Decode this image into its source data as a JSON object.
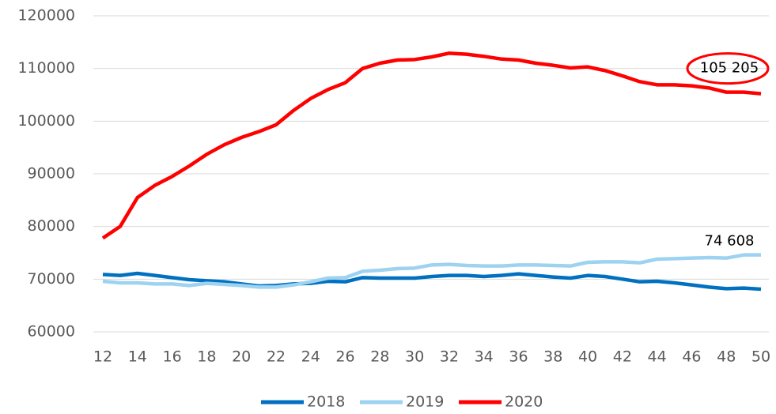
{
  "chart_data": {
    "type": "line",
    "x": [
      12,
      13,
      14,
      15,
      16,
      17,
      18,
      19,
      20,
      21,
      22,
      23,
      24,
      25,
      26,
      27,
      28,
      29,
      30,
      31,
      32,
      33,
      34,
      35,
      36,
      37,
      38,
      39,
      40,
      41,
      42,
      43,
      44,
      45,
      46,
      47,
      48,
      49,
      50
    ],
    "series": [
      {
        "name": "2018",
        "color": "#0070c0",
        "values": [
          70900,
          70700,
          71100,
          70700,
          70300,
          69900,
          69700,
          69500,
          69100,
          68700,
          68800,
          69100,
          69200,
          69600,
          69500,
          70300,
          70200,
          70200,
          70200,
          70500,
          70700,
          70700,
          70500,
          70700,
          71000,
          70700,
          70400,
          70200,
          70700,
          70500,
          70000,
          69500,
          69600,
          69300,
          68900,
          68500,
          68200,
          68300,
          68100
        ]
      },
      {
        "name": "2019",
        "color": "#9dd3f0",
        "values": [
          69600,
          69300,
          69300,
          69100,
          69100,
          68800,
          69200,
          69000,
          68800,
          68500,
          68500,
          68900,
          69500,
          70200,
          70300,
          71500,
          71700,
          72000,
          72100,
          72700,
          72800,
          72600,
          72500,
          72500,
          72700,
          72700,
          72600,
          72500,
          73200,
          73300,
          73300,
          73100,
          73800,
          73900,
          74000,
          74100,
          74000,
          74600,
          74608
        ],
        "value_labels": [
          null,
          null,
          null,
          null,
          null,
          null,
          null,
          null,
          null,
          null,
          null,
          null,
          null,
          null,
          null,
          null,
          null,
          null,
          null,
          null,
          null,
          null,
          null,
          null,
          null,
          null,
          null,
          null,
          null,
          null,
          null,
          null,
          null,
          null,
          null,
          null,
          null,
          null,
          "74 608"
        ]
      },
      {
        "name": "2020",
        "color": "#ff0000",
        "values": [
          77800,
          80000,
          85500,
          87800,
          89500,
          91500,
          93700,
          95500,
          96900,
          98000,
          99300,
          102000,
          104300,
          106000,
          107300,
          110000,
          111000,
          111600,
          111700,
          112200,
          112900,
          112700,
          112300,
          111800,
          111600,
          111000,
          110600,
          110100,
          110300,
          109600,
          108600,
          107500,
          106900,
          106900,
          106700,
          106300,
          105500,
          105500,
          105205
        ],
        "value_labels": [
          null,
          null,
          null,
          null,
          null,
          null,
          null,
          null,
          null,
          null,
          null,
          null,
          null,
          null,
          null,
          null,
          null,
          null,
          null,
          null,
          null,
          null,
          null,
          null,
          null,
          null,
          null,
          null,
          null,
          null,
          null,
          null,
          null,
          null,
          null,
          null,
          null,
          null,
          "105 205"
        ]
      }
    ],
    "xlim": [
      12,
      50
    ],
    "xticks": [
      12,
      14,
      16,
      18,
      20,
      22,
      24,
      26,
      28,
      30,
      32,
      34,
      36,
      38,
      40,
      42,
      44,
      46,
      48,
      50
    ],
    "ylim": [
      60000,
      120000
    ],
    "yticks": [
      60000,
      70000,
      80000,
      90000,
      100000,
      110000,
      120000
    ],
    "grid": true,
    "legend": "bottom"
  }
}
